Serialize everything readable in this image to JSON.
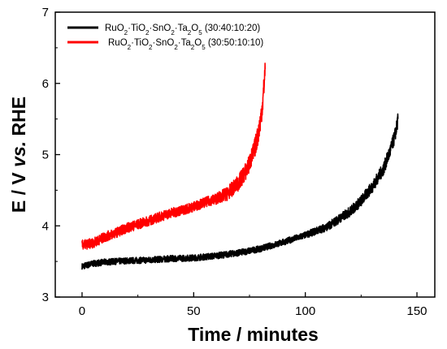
{
  "chart_data": {
    "type": "line",
    "xlabel": "Time / minutes",
    "ylabel_parts": [
      "E / V ",
      "vs.",
      " RHE"
    ],
    "xlim": [
      -12,
      158
    ],
    "ylim": [
      3,
      7
    ],
    "xticks": [
      0,
      50,
      100,
      150
    ],
    "yticks": [
      3,
      4,
      5,
      6,
      7
    ],
    "legend_position": "top-left",
    "series": [
      {
        "name": "RuO2·TiO2·SnO2·Ta2O5 (30:40:10:20)",
        "legend_parts": [
          [
            "RuO",
            false
          ],
          [
            "2",
            true
          ],
          [
            "·TiO",
            false
          ],
          [
            "2",
            true
          ],
          [
            "·SnO",
            false
          ],
          [
            "2",
            true
          ],
          [
            "·Ta",
            false
          ],
          [
            "2",
            true
          ],
          [
            "O",
            false
          ],
          [
            "5",
            true
          ],
          [
            " (30:40:10:20)",
            false
          ]
        ],
        "color": "#000000",
        "noise": 0.045,
        "x": [
          0,
          5,
          10,
          20,
          30,
          40,
          50,
          60,
          70,
          80,
          90,
          100,
          110,
          120,
          125,
          130,
          135,
          138,
          140,
          141,
          141.5
        ],
        "y": [
          3.43,
          3.47,
          3.49,
          3.51,
          3.52,
          3.54,
          3.55,
          3.58,
          3.62,
          3.68,
          3.77,
          3.87,
          3.99,
          4.2,
          4.35,
          4.55,
          4.8,
          5.05,
          5.25,
          5.4,
          5.5
        ]
      },
      {
        "name": "RuO2·TiO2·SnO2·Ta2O5 (30:50:10:10)",
        "legend_parts": [
          [
            "RuO",
            false
          ],
          [
            "2",
            true
          ],
          [
            "·TiO",
            false
          ],
          [
            "2",
            true
          ],
          [
            "·SnO",
            false
          ],
          [
            "2",
            true
          ],
          [
            "·Ta",
            false
          ],
          [
            "2",
            true
          ],
          [
            "O",
            false
          ],
          [
            "5",
            true
          ],
          [
            " (30:50:10:10)",
            false
          ]
        ],
        "color": "#ff0000",
        "noise": 0.07,
        "x": [
          0,
          2,
          5,
          10,
          15,
          20,
          25,
          30,
          35,
          40,
          45,
          50,
          55,
          60,
          65,
          70,
          74,
          77,
          79,
          80,
          81,
          82
        ],
        "y": [
          3.73,
          3.74,
          3.76,
          3.84,
          3.9,
          3.97,
          4.02,
          4.07,
          4.13,
          4.18,
          4.22,
          4.27,
          4.33,
          4.38,
          4.45,
          4.6,
          4.8,
          5.05,
          5.3,
          5.5,
          5.75,
          6.2
        ]
      }
    ]
  }
}
